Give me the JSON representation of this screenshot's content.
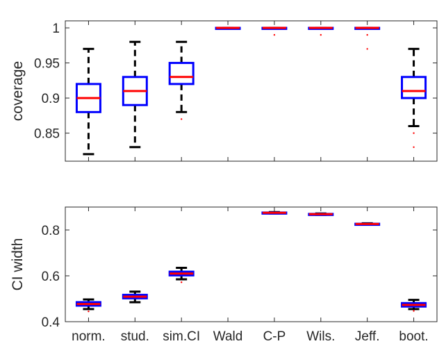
{
  "chart_data": [
    {
      "type": "boxplot",
      "title": "",
      "xlabel": "",
      "ylabel": "coverage",
      "ylim": [
        0.81,
        1.01
      ],
      "yticks": [
        0.85,
        0.9,
        0.95,
        1
      ],
      "ytick_labels": [
        "0.85",
        "0.9",
        "0.95",
        "1"
      ],
      "grid": false,
      "categories": [
        "norm.",
        "stud.",
        "sim.CI",
        "Wald",
        "C-P",
        "Wils.",
        "Jeff.",
        "boot."
      ],
      "boxes": [
        {
          "category": "norm.",
          "whisker_low": 0.82,
          "q1": 0.88,
          "median": 0.9,
          "q3": 0.92,
          "whisker_high": 0.97,
          "outliers": []
        },
        {
          "category": "stud.",
          "whisker_low": 0.83,
          "q1": 0.89,
          "median": 0.91,
          "q3": 0.93,
          "whisker_high": 0.98,
          "outliers": []
        },
        {
          "category": "sim.CI",
          "whisker_low": 0.88,
          "q1": 0.92,
          "median": 0.93,
          "q3": 0.95,
          "whisker_high": 0.98,
          "outliers": [
            0.87
          ]
        },
        {
          "category": "Wald",
          "whisker_low": 1.0,
          "q1": 1.0,
          "median": 1.0,
          "q3": 1.0,
          "whisker_high": 1.0,
          "outliers": []
        },
        {
          "category": "C-P",
          "whisker_low": 1.0,
          "q1": 1.0,
          "median": 1.0,
          "q3": 1.0,
          "whisker_high": 1.0,
          "outliers": [
            0.99
          ]
        },
        {
          "category": "Wils.",
          "whisker_low": 1.0,
          "q1": 1.0,
          "median": 1.0,
          "q3": 1.0,
          "whisker_high": 1.0,
          "outliers": [
            0.99
          ]
        },
        {
          "category": "Jeff.",
          "whisker_low": 1.0,
          "q1": 1.0,
          "median": 1.0,
          "q3": 1.0,
          "whisker_high": 1.0,
          "outliers": [
            0.99,
            0.97
          ]
        },
        {
          "category": "boot.",
          "whisker_low": 0.86,
          "q1": 0.9,
          "median": 0.91,
          "q3": 0.93,
          "whisker_high": 0.97,
          "outliers": [
            0.85,
            0.83
          ]
        }
      ]
    },
    {
      "type": "boxplot",
      "title": "",
      "xlabel": "",
      "ylabel": "CI width",
      "ylim": [
        0.4,
        0.9
      ],
      "yticks": [
        0.4,
        0.6,
        0.8
      ],
      "ytick_labels": [
        "0.4",
        "0.6",
        "0.8"
      ],
      "grid": false,
      "categories": [
        "norm.",
        "stud.",
        "sim.CI",
        "Wald",
        "C-P",
        "Wils.",
        "Jeff.",
        "boot."
      ],
      "boxes": [
        {
          "category": "norm.",
          "whisker_low": 0.455,
          "q1": 0.47,
          "median": 0.477,
          "q3": 0.485,
          "whisker_high": 0.497,
          "outliers": [
            0.445
          ]
        },
        {
          "category": "stud.",
          "whisker_low": 0.485,
          "q1": 0.502,
          "median": 0.509,
          "q3": 0.517,
          "whisker_high": 0.531,
          "outliers": []
        },
        {
          "category": "sim.CI",
          "whisker_low": 0.585,
          "q1": 0.602,
          "median": 0.61,
          "q3": 0.618,
          "whisker_high": 0.635,
          "outliers": [
            0.572
          ]
        },
        {
          "category": "Wald",
          "whisker_low": null,
          "q1": null,
          "median": null,
          "q3": null,
          "whisker_high": null,
          "outliers": []
        },
        {
          "category": "C-P",
          "whisker_low": 0.872,
          "q1": 0.874,
          "median": 0.875,
          "q3": 0.876,
          "whisker_high": 0.878,
          "outliers": []
        },
        {
          "category": "Wils.",
          "whisker_low": 0.866,
          "q1": 0.868,
          "median": 0.869,
          "q3": 0.87,
          "whisker_high": 0.872,
          "outliers": []
        },
        {
          "category": "Jeff.",
          "whisker_low": 0.823,
          "q1": 0.825,
          "median": 0.826,
          "q3": 0.827,
          "whisker_high": 0.829,
          "outliers": []
        },
        {
          "category": "boot.",
          "whisker_low": 0.455,
          "q1": 0.466,
          "median": 0.473,
          "q3": 0.481,
          "whisker_high": 0.495,
          "outliers": [
            0.447
          ]
        }
      ]
    }
  ],
  "colors": {
    "box": "#0000ff",
    "median": "#ff0000",
    "whisker": "#000000",
    "outlier": "#ff0000",
    "axis": "#262626"
  }
}
